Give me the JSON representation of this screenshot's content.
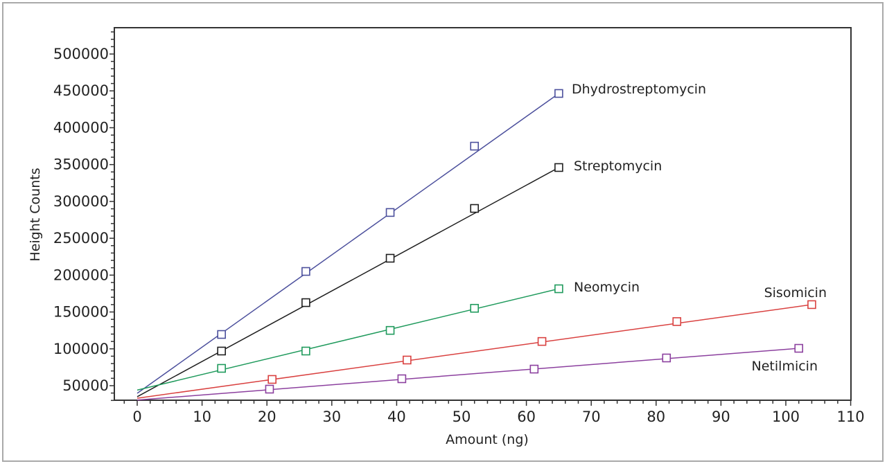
{
  "chart_data": {
    "type": "line",
    "title": "",
    "xlabel": "Amount (ng)",
    "ylabel": "Height Counts",
    "xlim": [
      -3.5,
      110
    ],
    "ylim": [
      30000,
      535000
    ],
    "xticks": [
      0,
      10,
      20,
      30,
      40,
      50,
      60,
      70,
      80,
      90,
      100,
      110
    ],
    "yticks": [
      50000,
      100000,
      150000,
      200000,
      250000,
      300000,
      350000,
      400000,
      450000,
      500000
    ],
    "grid": false,
    "legend": "inline labels at line ends",
    "marker": "open-square",
    "series": [
      {
        "name": "Dhydrostreptomycin",
        "color": "#4b4f9c",
        "x": [
          13,
          26,
          39,
          52,
          65
        ],
        "y": [
          119500,
          205000,
          285000,
          375000,
          446500
        ],
        "fit": {
          "x": [
            0,
            65
          ],
          "y": [
            39700,
            446500
          ]
        }
      },
      {
        "name": "Streptomycin",
        "color": "#1e1e1e",
        "x": [
          13,
          26,
          39,
          52,
          65
        ],
        "y": [
          97000,
          162700,
          222900,
          290500,
          346000
        ],
        "fit": {
          "x": [
            0,
            65
          ],
          "y": [
            35000,
            346000
          ]
        }
      },
      {
        "name": "Neomycin",
        "color": "#1f9a5c",
        "x": [
          13,
          26,
          39,
          52,
          65
        ],
        "y": [
          73500,
          97000,
          125000,
          155000,
          181500
        ],
        "fit": {
          "x": [
            0,
            65
          ],
          "y": [
            44000,
            181500
          ]
        }
      },
      {
        "name": "Sisomicin",
        "color": "#d9403f",
        "x": [
          20.8,
          41.6,
          62.4,
          83.2,
          104
        ],
        "y": [
          58500,
          84800,
          110000,
          137000,
          160000
        ],
        "fit": {
          "x": [
            0,
            104
          ],
          "y": [
            33000,
            160000
          ]
        }
      },
      {
        "name": "Netilmicin",
        "color": "#8b3f9e",
        "x": [
          20.4,
          40.8,
          61.2,
          81.6,
          102
        ],
        "y": [
          45300,
          59400,
          72500,
          87600,
          100700
        ],
        "fit": {
          "x": [
            0,
            102
          ],
          "y": [
            30500,
            100700
          ]
        }
      }
    ]
  }
}
